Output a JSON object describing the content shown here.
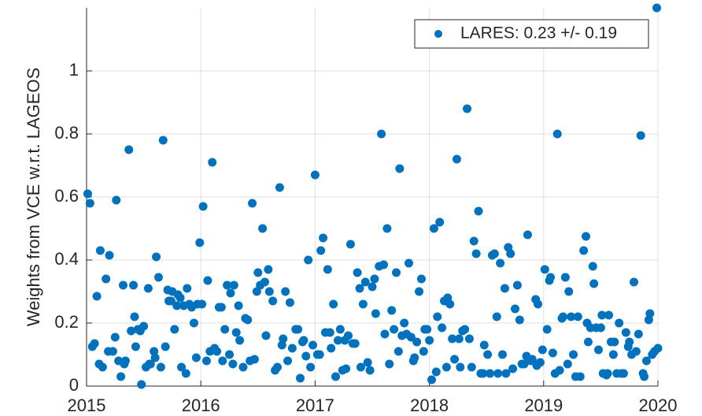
{
  "chart_data": {
    "type": "scatter",
    "ylabel": "Weights from VCE w.r.t. LAGEOS",
    "xlim": [
      2015,
      2020
    ],
    "ylim": [
      0,
      1.2
    ],
    "xticks": [
      2015,
      2016,
      2017,
      2018,
      2019,
      2020
    ],
    "yticks": [
      0,
      0.2,
      0.4,
      0.6,
      0.8,
      1
    ],
    "grid": true,
    "legend": "upper right",
    "series": [
      {
        "name": "LARES: 0.23 +/- 0.19",
        "color": "#0072BD",
        "x": [
          2015.01,
          2015.03,
          2015.05,
          2015.07,
          2015.09,
          2015.11,
          2015.12,
          2015.14,
          2015.17,
          2015.19,
          2015.2,
          2015.23,
          2015.25,
          2015.26,
          2015.28,
          2015.3,
          2015.32,
          2015.33,
          2015.34,
          2015.37,
          2015.39,
          2015.41,
          2015.42,
          2015.43,
          2015.45,
          2015.47,
          2015.48,
          2015.5,
          2015.52,
          2015.54,
          2015.55,
          2015.56,
          2015.59,
          2015.6,
          2015.61,
          2015.63,
          2015.65,
          2015.67,
          2015.69,
          2015.71,
          2015.72,
          2015.74,
          2015.75,
          2015.77,
          2015.79,
          2015.8,
          2015.82,
          2015.83,
          2015.85,
          2015.87,
          2015.88,
          2015.9,
          2015.92,
          2015.94,
          2015.96,
          2015.97,
          2015.99,
          2016.01,
          2016.02,
          2016.05,
          2016.06,
          2016.08,
          2016.1,
          2016.12,
          2016.14,
          2016.16,
          2016.18,
          2016.19,
          2016.21,
          2016.23,
          2016.25,
          2016.26,
          2016.28,
          2016.29,
          2016.31,
          2016.33,
          2016.34,
          2016.37,
          2016.39,
          2016.41,
          2016.43,
          2016.45,
          2016.47,
          2016.49,
          2016.5,
          2016.52,
          2016.54,
          2016.56,
          2016.57,
          2016.59,
          2016.6,
          2016.63,
          2016.65,
          2016.67,
          2016.69,
          2016.71,
          2016.72,
          2016.74,
          2016.76,
          2016.78,
          2016.8,
          2016.83,
          2016.85,
          2016.87,
          2016.89,
          2016.9,
          2016.92,
          2016.94,
          2016.96,
          2016.98,
          2017.0,
          2017.02,
          2017.04,
          2017.05,
          2017.07,
          2017.09,
          2017.11,
          2017.13,
          2017.14,
          2017.16,
          2017.18,
          2017.2,
          2017.22,
          2017.24,
          2017.26,
          2017.27,
          2017.29,
          2017.31,
          2017.33,
          2017.35,
          2017.37,
          2017.39,
          2017.4,
          2017.42,
          2017.44,
          2017.46,
          2017.48,
          2017.5,
          2017.52,
          2017.53,
          2017.56,
          2017.58,
          2017.6,
          2017.61,
          2017.63,
          2017.65,
          2017.67,
          2017.69,
          2017.71,
          2017.73,
          2017.74,
          2017.76,
          2017.78,
          2017.8,
          2017.82,
          2017.84,
          2017.86,
          2017.87,
          2017.89,
          2017.91,
          2017.93,
          2017.95,
          2017.96,
          2017.98,
          2018.0,
          2018.02,
          2018.04,
          2018.06,
          2018.07,
          2018.09,
          2018.11,
          2018.13,
          2018.15,
          2018.16,
          2018.18,
          2018.2,
          2018.22,
          2018.24,
          2018.26,
          2018.27,
          2018.29,
          2018.31,
          2018.33,
          2018.35,
          2018.37,
          2018.39,
          2018.41,
          2018.43,
          2018.45,
          2018.47,
          2018.48,
          2018.51,
          2018.53,
          2018.55,
          2018.57,
          2018.59,
          2018.6,
          2018.62,
          2018.64,
          2018.66,
          2018.67,
          2018.69,
          2018.71,
          2018.73,
          2018.75,
          2018.77,
          2018.79,
          2018.81,
          2018.83,
          2018.85,
          2018.86,
          2018.89,
          2018.9,
          2018.93,
          2018.94,
          2018.95,
          2018.97,
          2018.99,
          2019.01,
          2019.03,
          2019.05,
          2019.06,
          2019.08,
          2019.1,
          2019.12,
          2019.14,
          2019.16,
          2019.17,
          2019.19,
          2019.21,
          2019.22,
          2019.24,
          2019.26,
          2019.28,
          2019.3,
          2019.32,
          2019.35,
          2019.37,
          2019.38,
          2019.39,
          2019.41,
          2019.43,
          2019.44,
          2019.46,
          2019.48,
          2019.5,
          2019.51,
          2019.52,
          2019.55,
          2019.56,
          2019.57,
          2019.59,
          2019.61,
          2019.62,
          2019.64,
          2019.66,
          2019.68,
          2019.7,
          2019.72,
          2019.74,
          2019.75,
          2019.77,
          2019.79,
          2019.81,
          2019.83,
          2019.85,
          2019.87,
          2019.88,
          2019.9,
          2019.92,
          2019.93,
          2019.95,
          2019.97,
          2019.99,
          2020.0
        ],
        "values": [
          0.61,
          0.58,
          0.125,
          0.135,
          0.285,
          0.07,
          0.43,
          0.06,
          0.34,
          0.11,
          0.415,
          0.11,
          0.155,
          0.59,
          0.08,
          0.03,
          0.32,
          0.07,
          0.08,
          0.75,
          0.175,
          0.32,
          0.22,
          0.125,
          0.18,
          0.175,
          0.005,
          0.19,
          0.06,
          0.31,
          0.07,
          0.07,
          0.11,
          0.09,
          0.41,
          0.345,
          0.06,
          0.78,
          0.125,
          0.305,
          0.27,
          0.27,
          0.3,
          0.18,
          0.255,
          0.29,
          0.28,
          0.06,
          0.255,
          0.04,
          0.31,
          0.26,
          0.25,
          0.2,
          0.09,
          0.26,
          0.455,
          0.26,
          0.57,
          0.08,
          0.335,
          0.11,
          0.71,
          0.12,
          0.11,
          0.25,
          0.25,
          0.08,
          0.18,
          0.32,
          0.1,
          0.295,
          0.07,
          0.32,
          0.17,
          0.255,
          0.145,
          0.06,
          0.215,
          0.21,
          0.08,
          0.58,
          0.085,
          0.3,
          0.36,
          0.32,
          0.5,
          0.33,
          0.16,
          0.37,
          0.3,
          0.27,
          0.05,
          0.06,
          0.63,
          0.13,
          0.15,
          0.3,
          0.08,
          0.265,
          0.12,
          0.18,
          0.18,
          0.025,
          0.14,
          0.145,
          0.095,
          0.4,
          0.06,
          0.13,
          0.67,
          0.1,
          0.1,
          0.43,
          0.47,
          0.17,
          0.37,
          0.17,
          0.12,
          0.26,
          0.03,
          0.145,
          0.18,
          0.05,
          0.145,
          0.055,
          0.16,
          0.45,
          0.135,
          0.135,
          0.36,
          0.31,
          0.06,
          0.26,
          0.33,
          0.075,
          0.05,
          0.315,
          0.34,
          0.23,
          0.38,
          0.8,
          0.385,
          0.165,
          0.5,
          0.07,
          0.24,
          0.18,
          0.36,
          0.11,
          0.69,
          0.16,
          0.2,
          0.165,
          0.39,
          0.155,
          0.08,
          0.09,
          0.14,
          0.3,
          0.34,
          0.11,
          0.18,
          0.18,
          0.145,
          0.02,
          0.5,
          0.045,
          0.22,
          0.52,
          0.185,
          0.27,
          0.06,
          0.28,
          0.26,
          0.15,
          0.085,
          0.72,
          0.15,
          0.06,
          0.175,
          0.18,
          0.88,
          0.15,
          0.06,
          0.46,
          0.42,
          0.555,
          0.04,
          0.04,
          0.13,
          0.1,
          0.04,
          0.415,
          0.42,
          0.22,
          0.04,
          0.39,
          0.1,
          0.31,
          0.04,
          0.44,
          0.42,
          0.055,
          0.245,
          0.32,
          0.21,
          0.07,
          0.07,
          0.095,
          0.48,
          0.08,
          0.085,
          0.275,
          0.065,
          0.26,
          0.075,
          0.115,
          0.37,
          0.18,
          0.335,
          0.345,
          0.105,
          0.04,
          0.8,
          0.05,
          0.215,
          0.22,
          0.345,
          0.07,
          0.3,
          0.22,
          0.1,
          0.03,
          0.22,
          0.03,
          0.43,
          0.475,
          0.2,
          0.14,
          0.185,
          0.38,
          0.325,
          0.185,
          0.115,
          0.185,
          0.225,
          0.04,
          0.035,
          0.04,
          0.225,
          0.14,
          0.1,
          0.14,
          0.04,
          0.2,
          0.04,
          0.04,
          0.17,
          0.125,
          0.14,
          0.1,
          0.33,
          0.11,
          0.165,
          0.795,
          0.04,
          0.03,
          0.08,
          0.21,
          0.23,
          0.1,
          0.11,
          1.2,
          0.12
        ]
      }
    ]
  }
}
